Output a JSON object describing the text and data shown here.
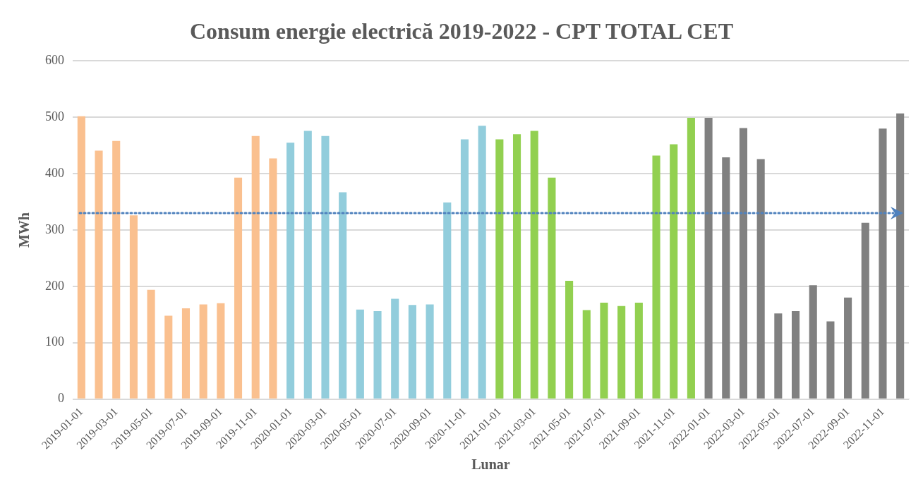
{
  "chart_data": {
    "type": "bar",
    "title": "Consum energie electrică 2019-2022 - CPT TOTAL CET",
    "xlabel": "Lunar",
    "ylabel": "MWh",
    "categories": [
      "2019-01-01",
      null,
      "2019-03-01",
      null,
      "2019-05-01",
      null,
      "2019-07-01",
      null,
      "2019-09-01",
      null,
      "2019-11-01",
      null,
      "2020-01-01",
      null,
      "2020-03-01",
      null,
      "2020-05-01",
      null,
      "2020-07-01",
      null,
      "2020-09-01",
      null,
      "2020-11-01",
      null,
      "2021-01-01",
      null,
      "2021-03-01",
      null,
      "2021-05-01",
      null,
      "2021-07-01",
      null,
      "2021-09-01",
      null,
      "2021-11-01",
      null,
      "2022-01-01",
      null,
      "2022-03-01",
      null,
      "2022-05-01",
      null,
      "2022-07-01",
      null,
      "2022-09-01",
      null,
      "2022-11-01",
      null
    ],
    "values": [
      502,
      441,
      458,
      326,
      194,
      148,
      161,
      168,
      170,
      393,
      467,
      427,
      455,
      476,
      467,
      367,
      159,
      156,
      178,
      167,
      168,
      349,
      461,
      485,
      461,
      470,
      476,
      393,
      210,
      158,
      171,
      165,
      171,
      432,
      452,
      499,
      499,
      429,
      481,
      426,
      152,
      156,
      202,
      138,
      180,
      313,
      480,
      507
    ],
    "colors": [
      "#fac08f",
      "#fac08f",
      "#fac08f",
      "#fac08f",
      "#fac08f",
      "#fac08f",
      "#fac08f",
      "#fac08f",
      "#fac08f",
      "#fac08f",
      "#fac08f",
      "#fac08f",
      "#92cddc",
      "#92cddc",
      "#92cddc",
      "#92cddc",
      "#92cddc",
      "#92cddc",
      "#92cddc",
      "#92cddc",
      "#92cddc",
      "#92cddc",
      "#92cddc",
      "#92cddc",
      "#92d050",
      "#92d050",
      "#92d050",
      "#92d050",
      "#92d050",
      "#92d050",
      "#92d050",
      "#92d050",
      "#92d050",
      "#92d050",
      "#92d050",
      "#92d050",
      "#808080",
      "#808080",
      "#808080",
      "#808080",
      "#808080",
      "#808080",
      "#808080",
      "#808080",
      "#808080",
      "#808080",
      "#808080",
      "#808080"
    ],
    "ylim": [
      0,
      600
    ],
    "yticks": [
      0,
      100,
      200,
      300,
      400,
      500,
      600
    ],
    "grid": "y",
    "legend": false,
    "ref_lines": [
      {
        "axis": "y",
        "value": 330,
        "color": "#4f81bd",
        "line_style": "dotted"
      }
    ]
  }
}
